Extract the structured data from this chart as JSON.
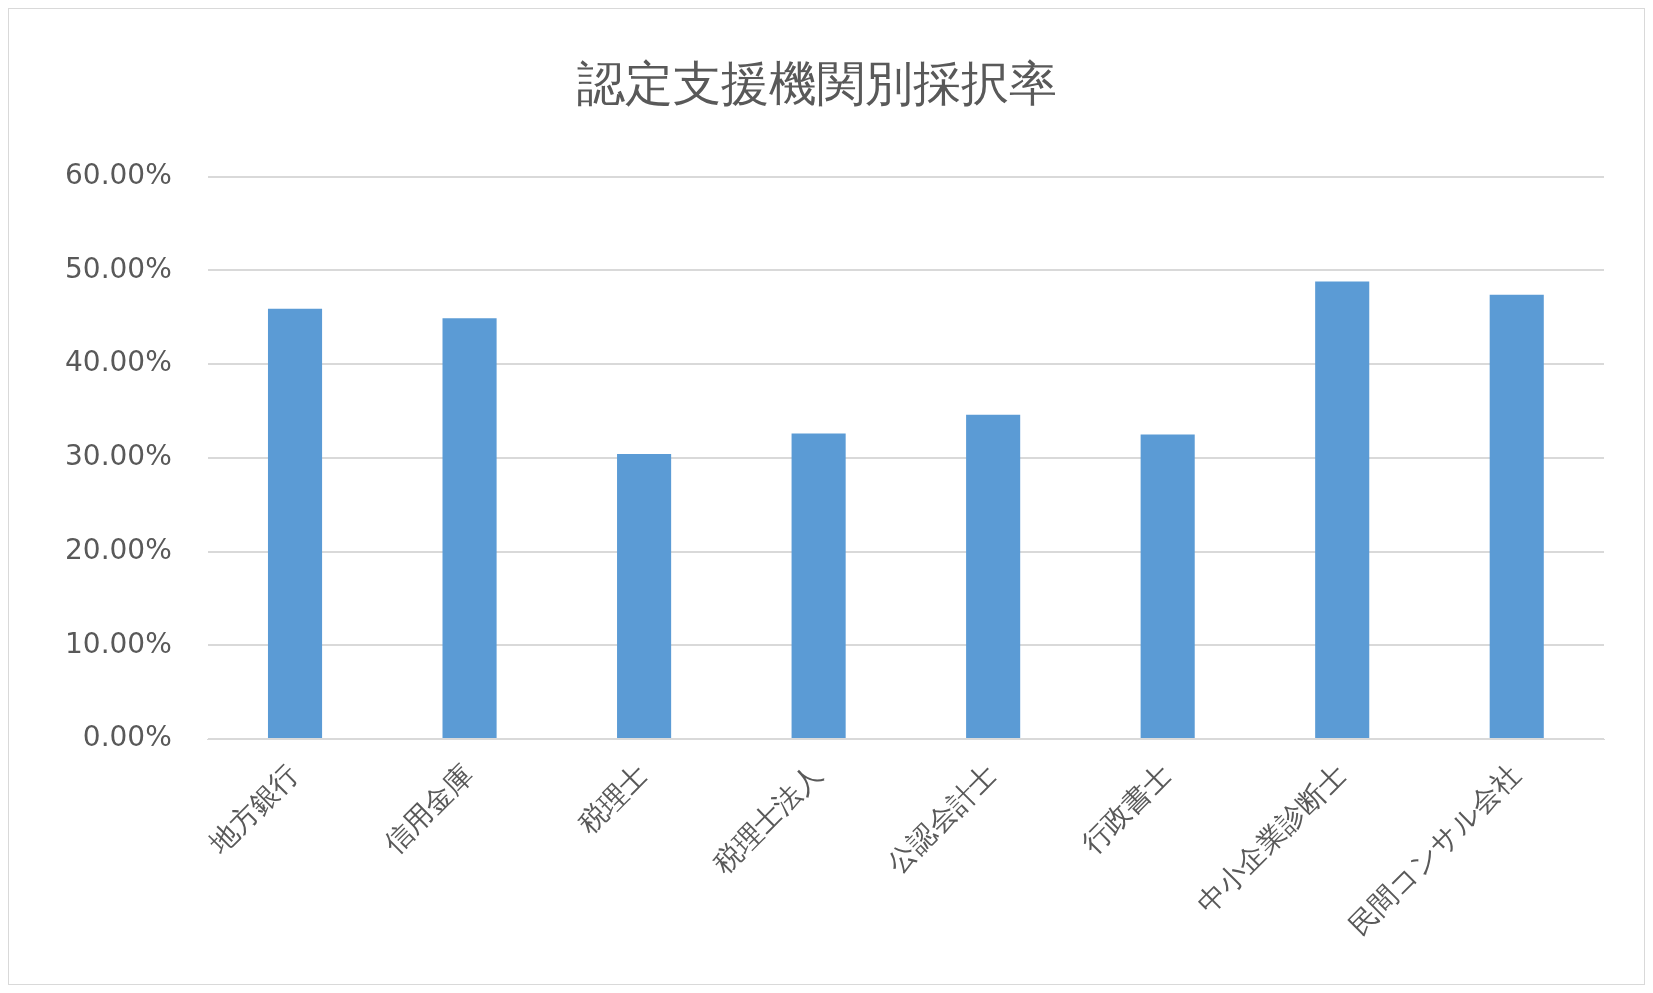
{
  "chart_data": {
    "type": "bar",
    "title": "認定支援機関別採択率",
    "categories": [
      "地方銀行",
      "信用金庫",
      "税理士",
      "税理士法人",
      "公認会計士",
      "行政書士",
      "中小企業診断士",
      "民間コンサル会社"
    ],
    "values": [
      45.9,
      44.9,
      30.4,
      32.6,
      34.6,
      32.5,
      48.8,
      47.4
    ],
    "color": "#5b9bd5",
    "ylim": [
      0,
      60
    ],
    "yticks": [
      {
        "value": 0,
        "label": "0.00%"
      },
      {
        "value": 10,
        "label": "10.00%"
      },
      {
        "value": 20,
        "label": "20.00%"
      },
      {
        "value": 30,
        "label": "30.00%"
      },
      {
        "value": 40,
        "label": "40.00%"
      },
      {
        "value": 50,
        "label": "50.00%"
      },
      {
        "value": 60,
        "label": "60.00%"
      }
    ],
    "grid": "y",
    "legend": false
  }
}
